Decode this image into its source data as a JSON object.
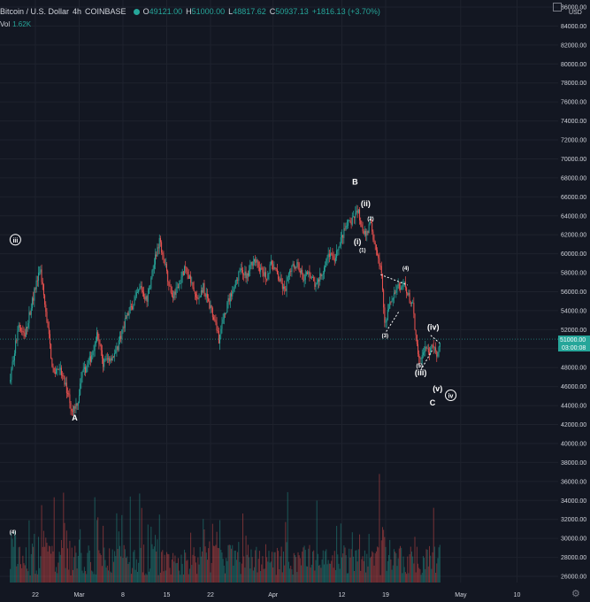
{
  "header": {
    "symbol": "Bitcoin / U.S. Dollar",
    "interval": "4h",
    "exchange": "COINBASE",
    "open_label": "O",
    "open": "49121.00",
    "high_label": "H",
    "high": "51000.00",
    "low_label": "L",
    "low": "48817.62",
    "close_label": "C",
    "close": "50937.13",
    "change": "+1816.13 (+3.70%)"
  },
  "volume": {
    "label": "Vol",
    "value": "1.62K"
  },
  "currency": "USD",
  "last_price_label": "51000.00",
  "countdown": "03:00:08",
  "colors": {
    "background": "#131722",
    "up": "#26a69a",
    "down": "#ef5350",
    "grid": "#1e222d",
    "text": "#d1d4dc",
    "price_tag": "#26a69a"
  },
  "chart_data": {
    "type": "candlestick",
    "interval": "4h",
    "ylim": [
      26000,
      86000
    ],
    "y_ticks": [
      26000,
      28000,
      30000,
      32000,
      34000,
      36000,
      38000,
      40000,
      42000,
      44000,
      46000,
      48000,
      50000,
      52000,
      54000,
      56000,
      58000,
      60000,
      62000,
      64000,
      66000,
      68000,
      70000,
      72000,
      74000,
      76000,
      78000,
      80000,
      82000,
      84000,
      86000
    ],
    "y_tick_labels": [
      "26000.00",
      "28000.00",
      "30000.00",
      "32000.00",
      "34000.00",
      "36000.00",
      "38000.00",
      "40000.00",
      "42000.00",
      "44000.00",
      "46000.00",
      "48000.00",
      "50000.00",
      "52000.00",
      "54000.00",
      "56000.00",
      "58000.00",
      "60000.00",
      "62000.00",
      "64000.00",
      "66000.00",
      "68000.00",
      "70000.00",
      "72000.00",
      "74000.00",
      "76000.00",
      "78000.00",
      "80000.00",
      "82000.00",
      "84000.00",
      "86000.00"
    ],
    "x_ticks": [
      {
        "label": "22",
        "day": 22
      },
      {
        "label": "Mar",
        "day": 29
      },
      {
        "label": "8",
        "day": 36
      },
      {
        "label": "15",
        "day": 43
      },
      {
        "label": "22",
        "day": 50
      },
      {
        "label": "Apr",
        "day": 60
      },
      {
        "label": "12",
        "day": 71
      },
      {
        "label": "19",
        "day": 78
      },
      {
        "label": "May",
        "day": 90
      },
      {
        "label": "10",
        "day": 99
      }
    ],
    "price_path": [
      [
        18,
        46500
      ],
      [
        19.5,
        52500
      ],
      [
        20.5,
        51500
      ],
      [
        22.5,
        57500
      ],
      [
        23,
        58000
      ],
      [
        24,
        53000
      ],
      [
        25,
        47500
      ],
      [
        26,
        48000
      ],
      [
        27.5,
        45000
      ],
      [
        28,
        43500
      ],
      [
        29,
        44500
      ],
      [
        29.5,
        47000
      ],
      [
        31,
        49000
      ],
      [
        32,
        51500
      ],
      [
        33,
        48500
      ],
      [
        35,
        49500
      ],
      [
        36.5,
        53000
      ],
      [
        38,
        55000
      ],
      [
        39,
        56500
      ],
      [
        40,
        55000
      ],
      [
        41,
        58500
      ],
      [
        42,
        61500
      ],
      [
        43,
        58500
      ],
      [
        44,
        55500
      ],
      [
        45,
        56500
      ],
      [
        46,
        58500
      ],
      [
        47,
        57000
      ],
      [
        48,
        55000
      ],
      [
        49,
        56500
      ],
      [
        50,
        54500
      ],
      [
        51,
        53000
      ],
      [
        51.5,
        51000
      ],
      [
        52,
        52500
      ],
      [
        53,
        55000
      ],
      [
        54,
        56500
      ],
      [
        55,
        58500
      ],
      [
        56,
        57500
      ],
      [
        57,
        59500
      ],
      [
        58,
        58500
      ],
      [
        59,
        57500
      ],
      [
        60,
        59000
      ],
      [
        61,
        57500
      ],
      [
        62,
        56000
      ],
      [
        63,
        58500
      ],
      [
        64,
        59000
      ],
      [
        65,
        57500
      ],
      [
        66,
        58000
      ],
      [
        67,
        56500
      ],
      [
        68,
        58000
      ],
      [
        69,
        60000
      ],
      [
        70,
        59500
      ],
      [
        71,
        61500
      ],
      [
        72,
        63000
      ],
      [
        73,
        63500
      ],
      [
        73.7,
        64800
      ],
      [
        74.3,
        63000
      ],
      [
        75,
        62000
      ],
      [
        75.7,
        63200
      ],
      [
        76.3,
        61500
      ],
      [
        77,
        59500
      ],
      [
        77.5,
        57800
      ],
      [
        78,
        52500
      ],
      [
        78.7,
        54500
      ],
      [
        79.5,
        55500
      ],
      [
        80,
        57000
      ],
      [
        80.6,
        56000
      ],
      [
        81.2,
        56800
      ],
      [
        81.8,
        55500
      ],
      [
        82.5,
        54500
      ],
      [
        83,
        51000
      ],
      [
        83.7,
        48500
      ],
      [
        84.3,
        50000
      ],
      [
        85,
        49500
      ],
      [
        85.7,
        50500
      ],
      [
        86.3,
        49300
      ],
      [
        86.8,
        50900
      ]
    ],
    "wave_labels": [
      {
        "text": "iii",
        "circled": true,
        "day": 18.8,
        "price": 61200
      },
      {
        "text": "A",
        "day": 28.3,
        "price": 42400
      },
      {
        "text": "B",
        "day": 73.1,
        "price": 67300
      },
      {
        "text": "(ii)",
        "day": 74.8,
        "price": 65000
      },
      {
        "text": "(2)",
        "day": 75.6,
        "price": 63500
      },
      {
        "text": "(i)",
        "day": 73.5,
        "price": 61000
      },
      {
        "text": "(1)",
        "day": 74.3,
        "price": 60200
      },
      {
        "text": "(4)",
        "day": 81.2,
        "price": 58300
      },
      {
        "text": "(3)",
        "day": 77.9,
        "price": 51200
      },
      {
        "text": "(iv)",
        "day": 85.6,
        "price": 52000
      },
      {
        "text": "(5)",
        "day": 83.4,
        "price": 48000
      },
      {
        "text": "(iii)",
        "day": 83.6,
        "price": 47200
      },
      {
        "text": "(v)",
        "day": 86.3,
        "price": 45500
      },
      {
        "text": "iv",
        "circled": true,
        "day": 88.4,
        "price": 44800
      },
      {
        "text": "C",
        "day": 85.5,
        "price": 44000
      },
      {
        "text": "(4)",
        "day": 18.4,
        "price": 30500
      }
    ],
    "trendlines": [
      {
        "from": [
          78.1,
          51800
        ],
        "to": [
          80.2,
          54000
        ]
      },
      {
        "from": [
          77.2,
          57800
        ],
        "to": [
          81.5,
          56700
        ]
      },
      {
        "from": [
          83.6,
          47700
        ],
        "to": [
          85.5,
          49900
        ]
      },
      {
        "from": [
          85.2,
          51400
        ],
        "to": [
          86.6,
          50600
        ]
      }
    ]
  }
}
